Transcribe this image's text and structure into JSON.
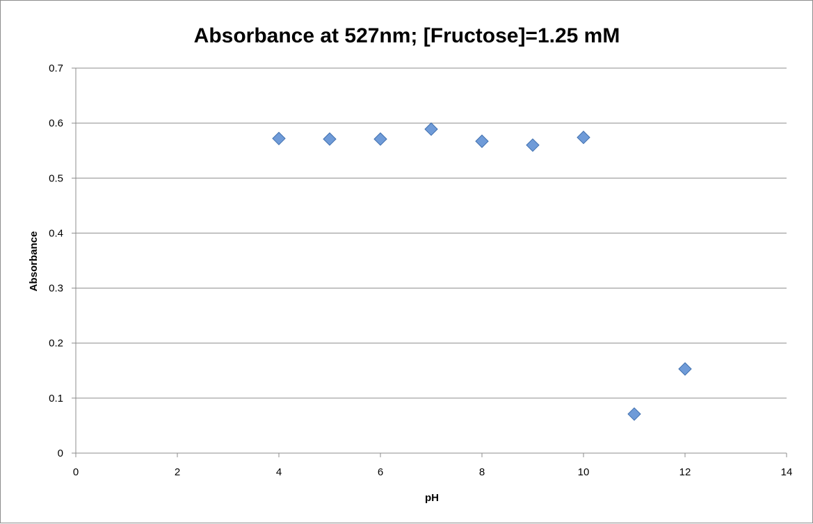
{
  "chart_data": {
    "type": "scatter",
    "title": "Absorbance at 527nm; [Fructose]=1.25 mM",
    "xlabel": "pH",
    "ylabel": "Absorbance",
    "xlim": [
      0,
      14
    ],
    "ylim": [
      0,
      0.7
    ],
    "x_ticks": [
      "0",
      "2",
      "4",
      "6",
      "8",
      "10",
      "12",
      "14"
    ],
    "y_ticks": [
      "0",
      "0.1",
      "0.2",
      "0.3",
      "0.4",
      "0.5",
      "0.6",
      "0.7"
    ],
    "grid": "horizontal",
    "marker": "diamond",
    "series": [
      {
        "x": [
          4,
          5,
          6,
          7,
          8,
          9,
          10,
          11,
          12
        ],
        "y": [
          0.572,
          0.571,
          0.571,
          0.589,
          0.567,
          0.56,
          0.574,
          0.071,
          0.153
        ]
      }
    ]
  },
  "colors": {
    "marker_fill": "#6f9bd8",
    "marker_stroke": "#3f6fae",
    "gridline": "#8c8c8c",
    "axis": "#8c8c8c"
  }
}
